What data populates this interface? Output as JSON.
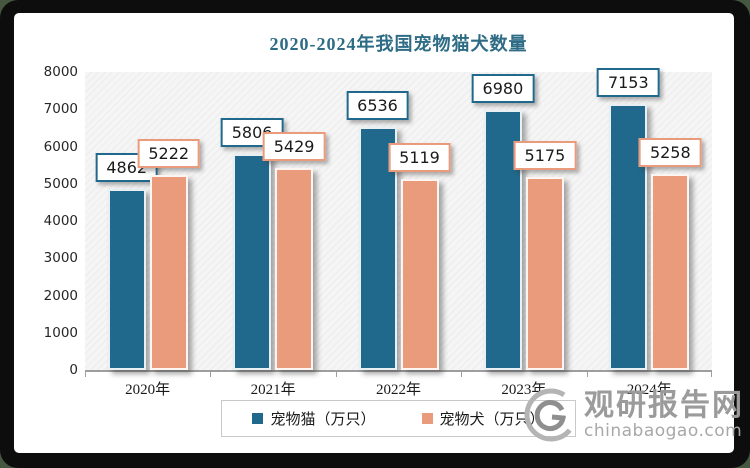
{
  "frame": {
    "page_background": "#46573f",
    "border_color": "#0d0d0d",
    "canvas_background": "#ffffff"
  },
  "chart_data": {
    "type": "bar",
    "title": "2020-2024年我国宠物猫犬数量",
    "title_color": "#2e6c86",
    "categories": [
      "2020年",
      "2021年",
      "2022年",
      "2023年",
      "2024年"
    ],
    "series": [
      {
        "name": "宠物猫（万只）",
        "color": "#20698c",
        "values": [
          4862,
          5806,
          6536,
          6980,
          7153
        ]
      },
      {
        "name": "宠物犬（万只）",
        "color": "#ea9b7b",
        "values": [
          5222,
          5429,
          5119,
          5175,
          5258
        ]
      }
    ],
    "ylim": [
      0,
      8000
    ],
    "yticks": [
      0,
      1000,
      2000,
      3000,
      4000,
      5000,
      6000,
      7000,
      8000
    ],
    "xlabel": "",
    "ylabel": "",
    "grid": false,
    "plot_background": "hatched-light-gray",
    "legend_position": "bottom",
    "data_labels": true
  },
  "watermark": {
    "name": "观研报告网",
    "url": "chinabaogao.com",
    "color": "#9b9b9b"
  }
}
